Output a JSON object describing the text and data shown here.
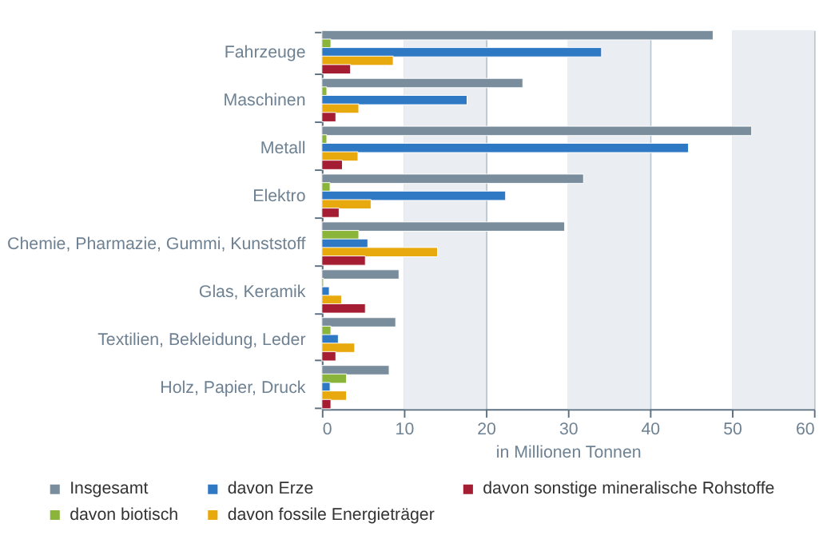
{
  "chart_data": {
    "type": "bar",
    "orientation": "horizontal",
    "categories": [
      "Fahrzeuge",
      "Maschinen",
      "Metall",
      "Elektro",
      "Chemie, Pharmazie, Gummi, Kunststoff",
      "Glas, Keramik",
      "Textilien, Bekleidung, Leder",
      "Holz, Papier, Druck"
    ],
    "series": [
      {
        "name": "Insgesamt",
        "color": "#7a8d9c",
        "values": [
          47.7,
          24.5,
          52.4,
          31.9,
          29.6,
          9.4,
          9.0,
          8.2
        ]
      },
      {
        "name": "davon biotisch",
        "color": "#8ab53a",
        "values": [
          1.1,
          0.6,
          0.6,
          1.0,
          4.5,
          0.2,
          1.1,
          3.0
        ]
      },
      {
        "name": "davon Erze",
        "color": "#2f78c4",
        "values": [
          34.1,
          17.7,
          44.7,
          22.4,
          5.6,
          0.9,
          2.0,
          1.0
        ]
      },
      {
        "name": "davon fossile Energieträger",
        "color": "#e8a90e",
        "values": [
          8.7,
          4.5,
          4.4,
          6.0,
          14.1,
          2.4,
          4.0,
          3.0
        ]
      },
      {
        "name": "davon sonstige mineralische Rohstoffe",
        "color": "#a51d33",
        "values": [
          3.5,
          1.7,
          2.5,
          2.1,
          5.3,
          5.3,
          1.7,
          1.1
        ]
      }
    ],
    "xlabel": "in Millionen Tonnen",
    "xlim": [
      0,
      60
    ],
    "xticks": [
      0,
      10,
      20,
      30,
      40,
      50,
      60
    ],
    "grid": "x",
    "legend": "bottom",
    "bands": [
      {
        "axis": "x",
        "from": 10,
        "to": 20,
        "color": "#eaeef2"
      },
      {
        "axis": "x",
        "from": 30,
        "to": 40,
        "color": "#eaeef2"
      },
      {
        "axis": "x",
        "from": 50,
        "to": 60,
        "color": "#eaeef2"
      }
    ]
  }
}
